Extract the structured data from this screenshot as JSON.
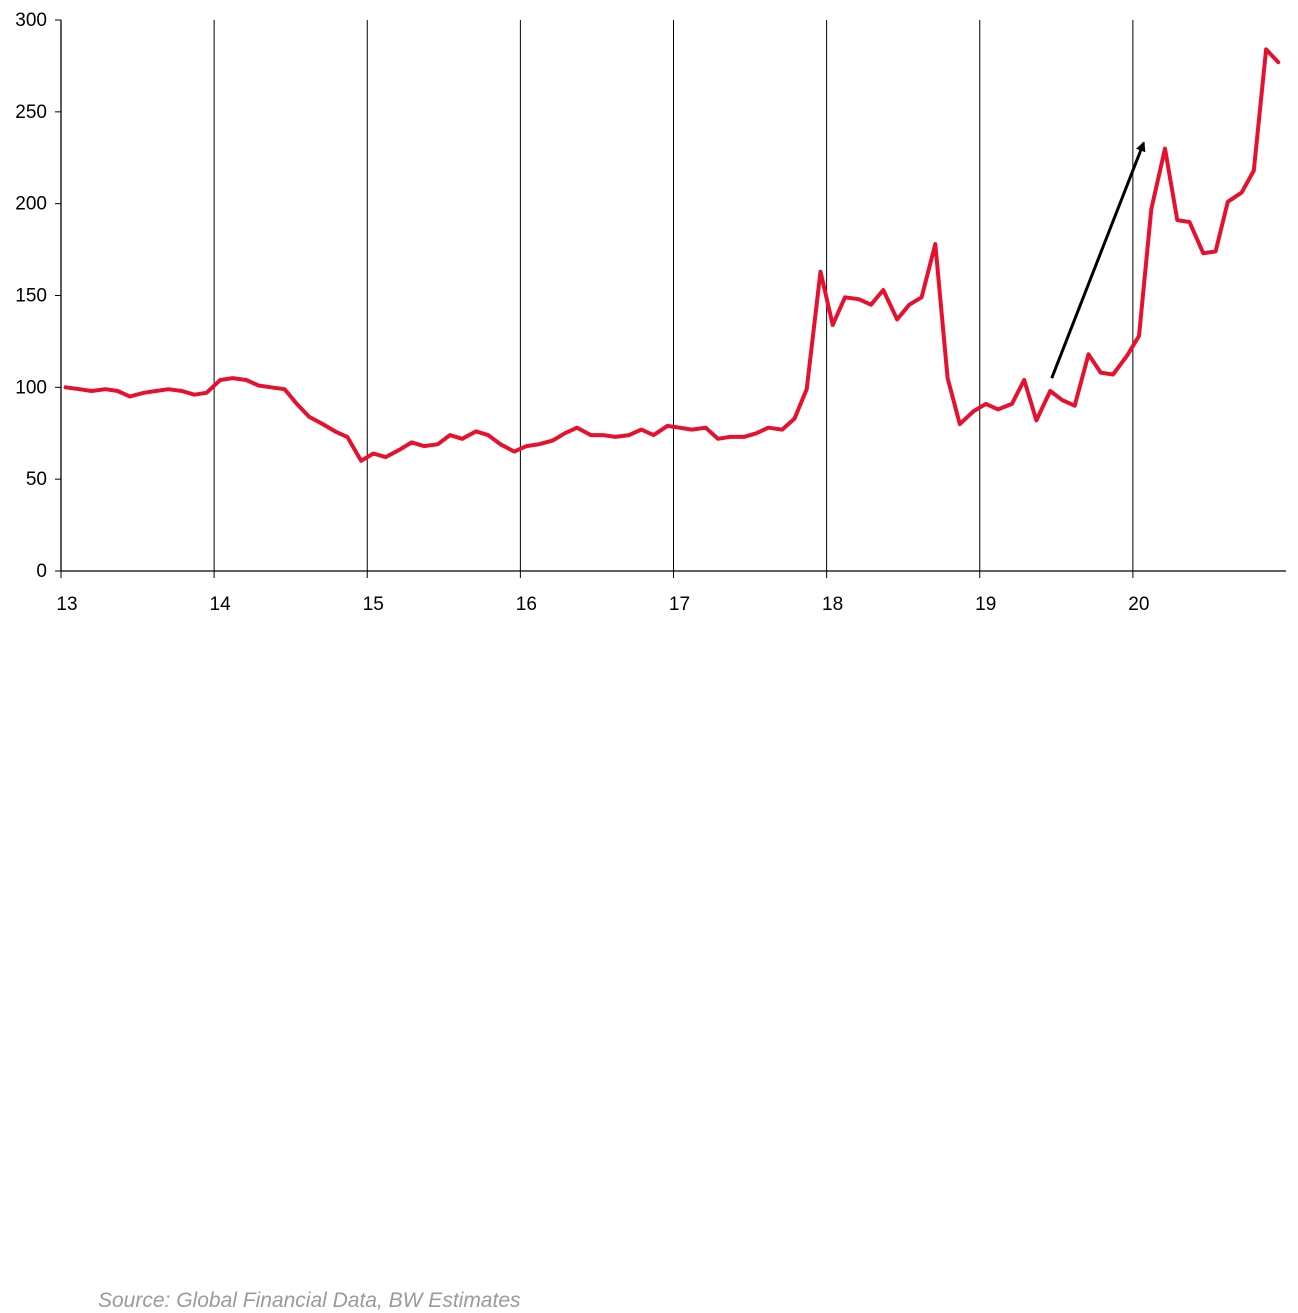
{
  "chart_data": {
    "type": "line",
    "title": "",
    "xlabel": "",
    "ylabel": "",
    "xlim": [
      13,
      21
    ],
    "ylim": [
      0,
      300
    ],
    "x_ticks": [
      13,
      14,
      15,
      16,
      17,
      18,
      19,
      20
    ],
    "x_tick_labels": [
      "13",
      "14",
      "15",
      "16",
      "17",
      "18",
      "19",
      "20"
    ],
    "y_ticks": [
      0,
      50,
      100,
      150,
      200,
      250,
      300
    ],
    "y_tick_labels": [
      "0",
      "50",
      "100",
      "150",
      "200",
      "250",
      "300"
    ],
    "vertical_gridlines": true,
    "horizontal_gridlines": false,
    "legend": "none",
    "series": [
      {
        "color": "#e8112d",
        "x": [
          13.03,
          13.12,
          13.2,
          13.29,
          13.37,
          13.45,
          13.54,
          13.62,
          13.7,
          13.79,
          13.87,
          13.95,
          14.04,
          14.12,
          14.21,
          14.29,
          14.37,
          14.46,
          14.54,
          14.62,
          14.71,
          14.79,
          14.87,
          14.96,
          15.04,
          15.12,
          15.21,
          15.29,
          15.37,
          15.46,
          15.54,
          15.62,
          15.71,
          15.79,
          15.87,
          15.96,
          16.04,
          16.12,
          16.21,
          16.29,
          16.37,
          16.46,
          16.54,
          16.62,
          16.71,
          16.79,
          16.87,
          16.96,
          17.04,
          17.12,
          17.21,
          17.29,
          17.37,
          17.46,
          17.54,
          17.62,
          17.71,
          17.79,
          17.87,
          17.96,
          18.04,
          18.12,
          18.21,
          18.29,
          18.37,
          18.46,
          18.54,
          18.62,
          18.71,
          18.79,
          18.87,
          18.96,
          19.04,
          19.12,
          19.21,
          19.29,
          19.37,
          19.46,
          19.54,
          19.62,
          19.71,
          19.79,
          19.87,
          19.96,
          20.04,
          20.12,
          20.21,
          20.29,
          20.37,
          20.46,
          20.54,
          20.62,
          20.71,
          20.79,
          20.87,
          20.95
        ],
        "y": [
          100,
          99,
          98,
          99,
          98,
          95,
          97,
          98,
          99,
          98,
          96,
          97,
          104,
          105,
          104,
          101,
          100,
          99,
          91,
          84,
          80,
          76,
          73,
          60,
          64,
          62,
          66,
          70,
          68,
          69,
          74,
          72,
          76,
          74,
          69,
          65,
          68,
          69,
          71,
          75,
          78,
          74,
          74,
          73,
          74,
          77,
          74,
          79,
          78,
          77,
          78,
          72,
          73,
          73,
          75,
          78,
          77,
          83,
          99,
          163,
          134,
          149,
          148,
          145,
          153,
          137,
          145,
          149,
          178,
          105,
          80,
          87,
          91,
          88,
          91,
          104,
          82,
          98,
          93,
          90,
          118,
          108,
          107,
          117,
          128,
          197,
          230,
          191,
          190,
          173,
          174,
          201,
          206,
          218,
          284,
          277
        ]
      }
    ],
    "annotations": [
      {
        "type": "arrow",
        "from": [
          19.47,
          105
        ],
        "to": [
          20.07,
          233
        ],
        "color": "#000000"
      }
    ]
  },
  "footer": {
    "source": "Source: Global Financial Data, BW Estimates"
  }
}
